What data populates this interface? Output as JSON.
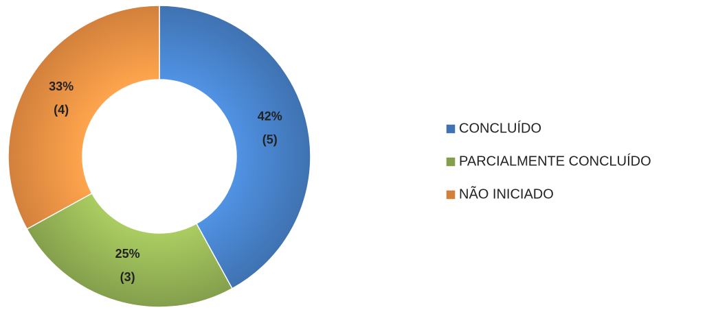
{
  "chart_data": {
    "type": "donut",
    "categories": [
      "CONCLUÍDO",
      "PARCIALMENTE CONCLUÍDO",
      "NÃO INICIADO"
    ],
    "values": [
      42,
      25,
      33
    ],
    "value_labels": [
      "42%",
      "25%",
      "33%"
    ],
    "count_labels": [
      "(5)",
      "(3)",
      "(4)"
    ],
    "colors": [
      "#4a86d0",
      "#9bbb59",
      "#f79646"
    ],
    "legend": "right"
  }
}
